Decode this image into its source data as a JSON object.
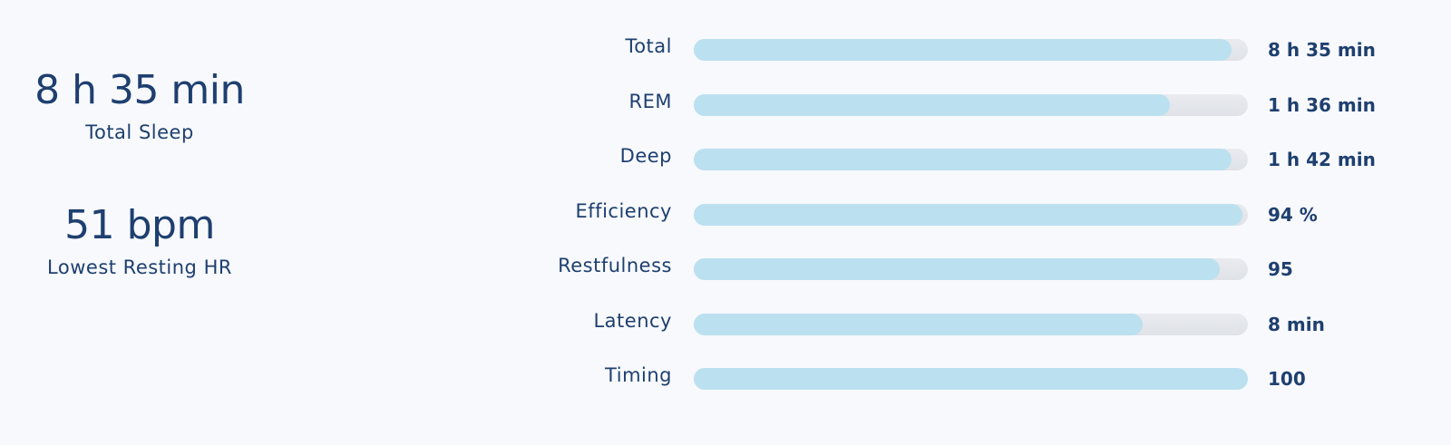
{
  "summary": [
    {
      "value": "8 h 35 min",
      "label": "Total Sleep"
    },
    {
      "value": "51 bpm",
      "label": "Lowest Resting HR"
    }
  ],
  "contributors": {
    "xlim": [
      0,
      100
    ],
    "rows": [
      {
        "label": "Total",
        "score": 97,
        "text": "8 h 35 min"
      },
      {
        "label": "REM",
        "score": 86,
        "text": "1 h 36 min"
      },
      {
        "label": "Deep",
        "score": 97,
        "text": "1 h 42 min"
      },
      {
        "label": "Efficiency",
        "score": 99,
        "text": "94 %"
      },
      {
        "label": "Restfulness",
        "score": 95,
        "text": "95"
      },
      {
        "label": "Latency",
        "score": 81,
        "text": "8 min"
      },
      {
        "label": "Timing",
        "score": 100,
        "text": "100"
      }
    ]
  }
}
